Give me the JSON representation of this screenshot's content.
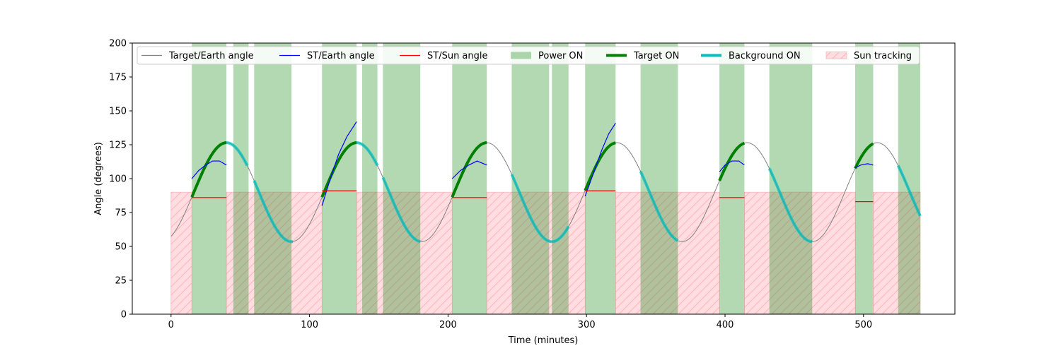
{
  "chart_data": {
    "type": "line",
    "title": "",
    "xlabel": "Time (minutes)",
    "ylabel": "Angle (degrees)",
    "xlim": [
      -28,
      566
    ],
    "ylim": [
      0,
      200
    ],
    "xticks": [
      0,
      100,
      200,
      300,
      400,
      500
    ],
    "yticks": [
      0,
      25,
      50,
      75,
      100,
      125,
      150,
      175,
      200
    ],
    "grid": false,
    "legend_placement": "top",
    "legend": [
      {
        "label": "Target/Earth angle",
        "kind": "line",
        "color": "#808080"
      },
      {
        "label": "ST/Earth angle",
        "kind": "line",
        "color": "#0000ff"
      },
      {
        "label": "ST/Sun angle",
        "kind": "line",
        "color": "#ff0000"
      },
      {
        "label": "Power ON",
        "kind": "patch",
        "color": "#008000"
      },
      {
        "label": "Target ON",
        "kind": "thickline",
        "color": "#008000"
      },
      {
        "label": "Background ON",
        "kind": "thickline",
        "color": "#00bfbf"
      },
      {
        "label": "Sun tracking",
        "kind": "hatch",
        "color": "#ff9999"
      }
    ],
    "target_earth_angle": {
      "period": 94,
      "phase_min": 40,
      "mean": 90,
      "amplitude": 36.5,
      "t_start": 0,
      "t_end": 541
    },
    "power_on_intervals": [
      [
        15,
        40
      ],
      [
        45,
        56
      ],
      [
        60,
        87
      ],
      [
        109,
        134
      ],
      [
        138,
        149
      ],
      [
        153,
        180
      ],
      [
        203,
        228
      ],
      [
        246,
        273
      ],
      [
        275,
        287
      ],
      [
        299,
        321
      ],
      [
        339,
        366
      ],
      [
        396,
        414
      ],
      [
        432,
        463
      ],
      [
        494,
        507
      ],
      [
        525,
        541
      ]
    ],
    "sun_tracking_intervals": [
      [
        0,
        15
      ],
      [
        40,
        109
      ],
      [
        134,
        203
      ],
      [
        228,
        299
      ],
      [
        321,
        396
      ],
      [
        414,
        494
      ],
      [
        507,
        541
      ]
    ],
    "sun_tracking_level": 90,
    "target_on_intervals": [
      [
        15,
        40
      ],
      [
        109,
        134
      ],
      [
        203,
        228
      ],
      [
        299,
        321
      ],
      [
        396,
        414
      ],
      [
        494,
        507
      ]
    ],
    "background_on_intervals": [
      [
        40,
        55
      ],
      [
        60,
        88
      ],
      [
        134,
        149
      ],
      [
        153,
        180
      ],
      [
        246,
        287
      ],
      [
        339,
        366
      ],
      [
        432,
        463
      ],
      [
        525,
        541
      ]
    ],
    "st_earth_segments": [
      [
        [
          15,
          100
        ],
        [
          20,
          106
        ],
        [
          25,
          110
        ],
        [
          30,
          113
        ],
        [
          35,
          113
        ],
        [
          40,
          110
        ]
      ],
      [
        [
          109,
          80
        ],
        [
          115,
          100
        ],
        [
          121,
          118
        ],
        [
          127,
          131
        ],
        [
          134,
          142
        ]
      ],
      [
        [
          203,
          100
        ],
        [
          209,
          106
        ],
        [
          215,
          110
        ],
        [
          221,
          113
        ],
        [
          228,
          110
        ]
      ],
      [
        [
          299,
          87
        ],
        [
          305,
          104
        ],
        [
          311,
          121
        ],
        [
          316,
          133
        ],
        [
          321,
          141
        ]
      ],
      [
        [
          396,
          105
        ],
        [
          400,
          110
        ],
        [
          405,
          113
        ],
        [
          410,
          113
        ],
        [
          414,
          110
        ]
      ],
      [
        [
          494,
          108
        ],
        [
          498,
          110
        ],
        [
          503,
          111
        ],
        [
          507,
          110
        ]
      ]
    ],
    "st_sun_segments": [
      {
        "x": [
          15,
          40
        ],
        "y": 86
      },
      {
        "x": [
          109,
          134
        ],
        "y": 91
      },
      {
        "x": [
          203,
          228
        ],
        "y": 86
      },
      {
        "x": [
          299,
          321
        ],
        "y": 91
      },
      {
        "x": [
          396,
          414
        ],
        "y": 86
      },
      {
        "x": [
          494,
          507
        ],
        "y": 83
      }
    ]
  }
}
